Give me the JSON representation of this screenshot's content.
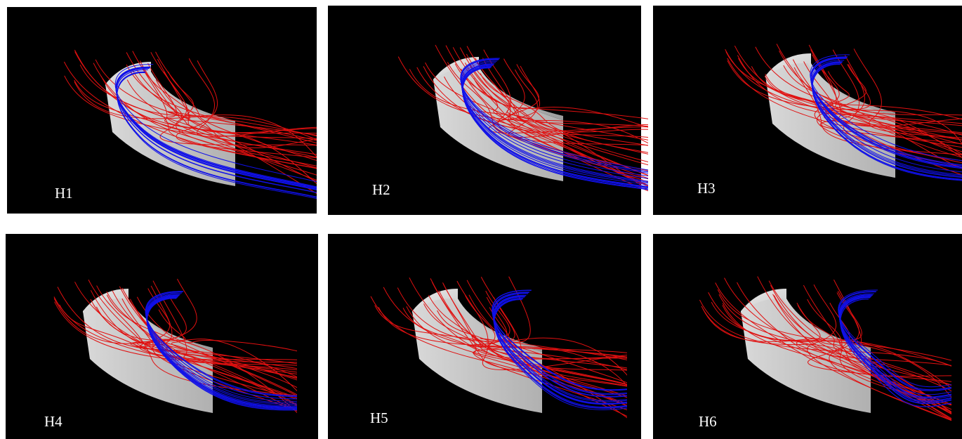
{
  "panels": [
    {
      "label": "H1"
    },
    {
      "label": "H2"
    },
    {
      "label": "H3"
    },
    {
      "label": "H4"
    },
    {
      "label": "H5"
    },
    {
      "label": "H6"
    }
  ]
}
